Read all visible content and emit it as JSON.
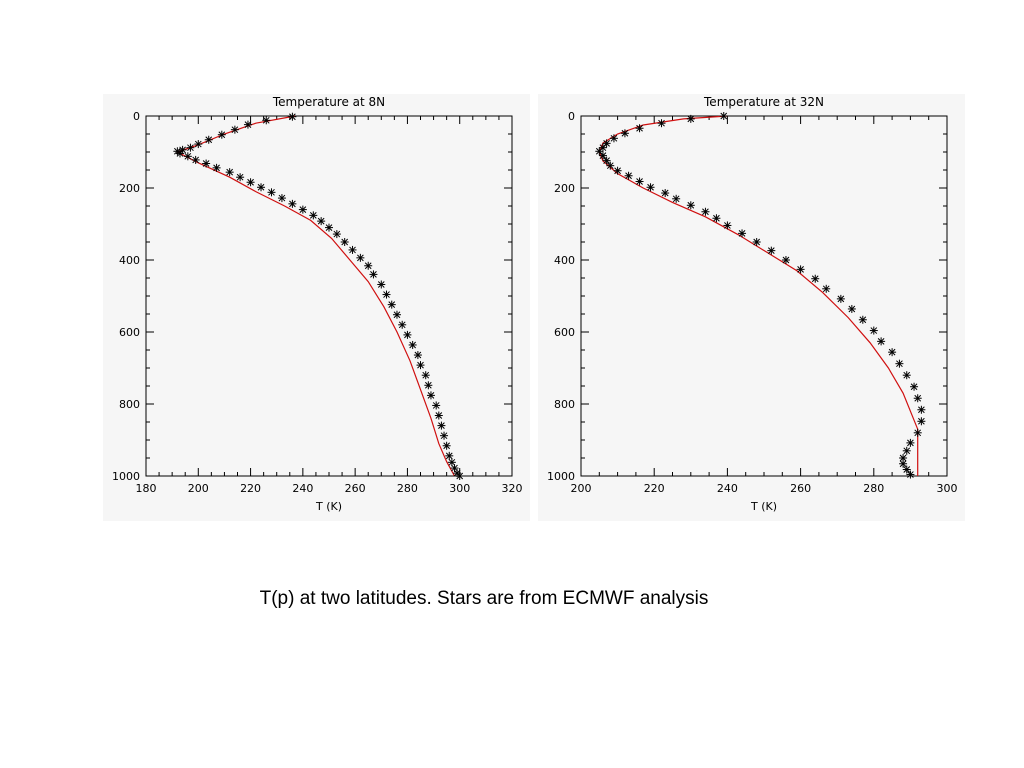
{
  "caption": "T(p) at two latitudes. Stars are from ECMWF analysis",
  "colors": {
    "model_line": "#d01010",
    "stars": "#000000",
    "panel_bg": "#f6f6f6"
  },
  "chart_data": [
    {
      "type": "line",
      "title": "Temperature at 8N",
      "xlabel": "T (K)",
      "ylabel": "",
      "xlim": [
        180,
        320
      ],
      "ylim": [
        1000,
        0
      ],
      "xticks": [
        180,
        200,
        220,
        240,
        260,
        280,
        300,
        320
      ],
      "yticks": [
        0,
        200,
        400,
        600,
        800,
        1000
      ],
      "grid": false,
      "series": [
        {
          "kind": "line",
          "points": [
            [
              237,
              0
            ],
            [
              222,
              20
            ],
            [
              210,
              50
            ],
            [
              200,
              80
            ],
            [
              192,
              100
            ],
            [
              200,
              130
            ],
            [
              212,
              170
            ],
            [
              222,
              210
            ],
            [
              233,
              250
            ],
            [
              243,
              290
            ],
            [
              251,
              340
            ],
            [
              258,
              400
            ],
            [
              265,
              460
            ],
            [
              271,
              530
            ],
            [
              276,
              600
            ],
            [
              281,
              680
            ],
            [
              285,
              760
            ],
            [
              289,
              840
            ],
            [
              292,
              910
            ],
            [
              295,
              960
            ],
            [
              298,
              1000
            ]
          ]
        },
        {
          "kind": "scatter",
          "marker": "star",
          "points": [
            [
              236,
              2
            ],
            [
              226,
              12
            ],
            [
              219,
              24
            ],
            [
              214,
              38
            ],
            [
              209,
              52
            ],
            [
              204,
              66
            ],
            [
              200,
              78
            ],
            [
              197,
              88
            ],
            [
              194,
              94
            ],
            [
              192,
              98
            ],
            [
              193,
              104
            ],
            [
              196,
              112
            ],
            [
              199,
              122
            ],
            [
              203,
              132
            ],
            [
              207,
              144
            ],
            [
              212,
              156
            ],
            [
              216,
              170
            ],
            [
              220,
              184
            ],
            [
              224,
              198
            ],
            [
              228,
              212
            ],
            [
              232,
              228
            ],
            [
              236,
              244
            ],
            [
              240,
              260
            ],
            [
              244,
              276
            ],
            [
              247,
              292
            ],
            [
              250,
              310
            ],
            [
              253,
              328
            ],
            [
              256,
              350
            ],
            [
              259,
              372
            ],
            [
              262,
              394
            ],
            [
              265,
              416
            ],
            [
              267,
              440
            ],
            [
              270,
              468
            ],
            [
              272,
              496
            ],
            [
              274,
              524
            ],
            [
              276,
              552
            ],
            [
              278,
              580
            ],
            [
              280,
              608
            ],
            [
              282,
              636
            ],
            [
              284,
              664
            ],
            [
              285,
              692
            ],
            [
              287,
              720
            ],
            [
              288,
              748
            ],
            [
              289,
              776
            ],
            [
              291,
              804
            ],
            [
              292,
              832
            ],
            [
              293,
              860
            ],
            [
              294,
              888
            ],
            [
              295,
              916
            ],
            [
              296,
              944
            ],
            [
              297,
              962
            ],
            [
              298,
              978
            ],
            [
              299,
              992
            ],
            [
              300,
              1000
            ]
          ]
        }
      ]
    },
    {
      "type": "line",
      "title": "Temperature at 32N",
      "xlabel": "T (K)",
      "ylabel": "",
      "xlim": [
        200,
        300
      ],
      "ylim": [
        1000,
        0
      ],
      "xticks": [
        200,
        220,
        240,
        260,
        280,
        300
      ],
      "yticks": [
        0,
        200,
        400,
        600,
        800,
        1000
      ],
      "grid": false,
      "series": [
        {
          "kind": "line",
          "points": [
            [
              240,
              0
            ],
            [
              228,
              8
            ],
            [
              217,
              25
            ],
            [
              210,
              50
            ],
            [
              206,
              75
            ],
            [
              205,
              100
            ],
            [
              206,
              125
            ],
            [
              210,
              160
            ],
            [
              217,
              200
            ],
            [
              225,
              240
            ],
            [
              234,
              280
            ],
            [
              243,
              330
            ],
            [
              251,
              380
            ],
            [
              259,
              430
            ],
            [
              266,
              490
            ],
            [
              273,
              560
            ],
            [
              279,
              630
            ],
            [
              284,
              700
            ],
            [
              288,
              770
            ],
            [
              292,
              870
            ],
            [
              292,
              1000
            ]
          ]
        },
        {
          "kind": "scatter",
          "marker": "star",
          "points": [
            [
              239,
              0
            ],
            [
              230,
              8
            ],
            [
              222,
              20
            ],
            [
              216,
              34
            ],
            [
              212,
              48
            ],
            [
              209,
              62
            ],
            [
              207,
              76
            ],
            [
              206,
              88
            ],
            [
              205,
              98
            ],
            [
              206,
              110
            ],
            [
              207,
              124
            ],
            [
              208,
              138
            ],
            [
              210,
              152
            ],
            [
              213,
              166
            ],
            [
              216,
              182
            ],
            [
              219,
              198
            ],
            [
              223,
              214
            ],
            [
              226,
              230
            ],
            [
              230,
              248
            ],
            [
              234,
              266
            ],
            [
              237,
              284
            ],
            [
              240,
              304
            ],
            [
              244,
              326
            ],
            [
              248,
              350
            ],
            [
              252,
              374
            ],
            [
              256,
              400
            ],
            [
              260,
              426
            ],
            [
              264,
              452
            ],
            [
              267,
              480
            ],
            [
              271,
              508
            ],
            [
              274,
              536
            ],
            [
              277,
              566
            ],
            [
              280,
              596
            ],
            [
              282,
              626
            ],
            [
              285,
              656
            ],
            [
              287,
              688
            ],
            [
              289,
              720
            ],
            [
              291,
              752
            ],
            [
              292,
              784
            ],
            [
              293,
              816
            ],
            [
              293,
              848
            ],
            [
              292,
              880
            ],
            [
              290,
              908
            ],
            [
              289,
              930
            ],
            [
              288,
              950
            ],
            [
              288,
              966
            ],
            [
              289,
              982
            ],
            [
              290,
              996
            ]
          ]
        }
      ]
    }
  ]
}
